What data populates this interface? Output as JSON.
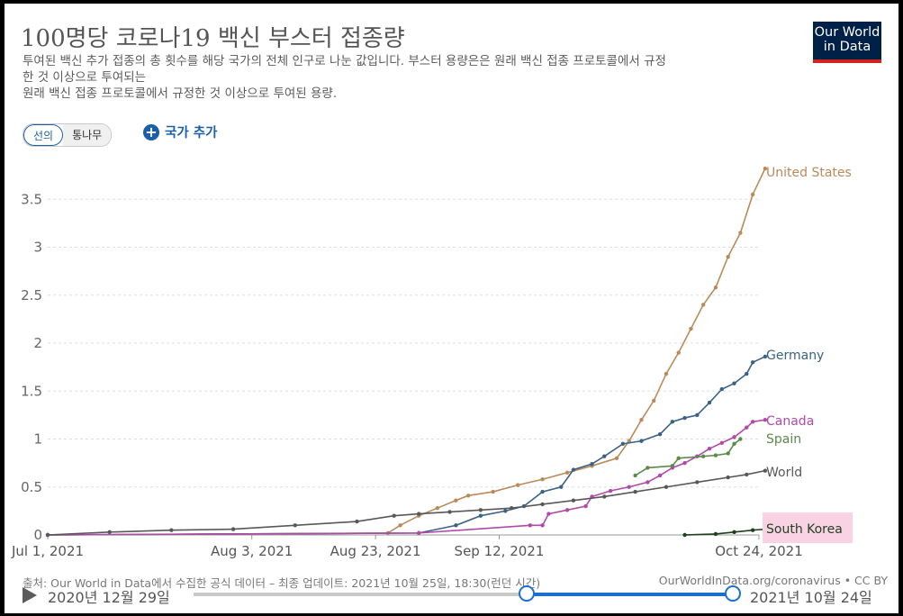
{
  "header": {
    "title": "100명당 코로나19 백신 부스터 접종량",
    "subtitle_line1": "투여된 백신 추가 접종의 총 횟수를 해당 국가의 전체 인구로 나눈 값입니다. 부스터 용량은은 원래 백신 접종 프로토콜에서 규정",
    "subtitle_line2": "한 것 이상으로 투여되는",
    "subtitle_line3": "원래 백신 접종 프로토콜에서 규정한 것 이상으로 투여된 용량.",
    "logo_line1": "Our World",
    "logo_line2": "in Data"
  },
  "controls": {
    "tab_line": "선의",
    "tab_map": "통나무",
    "add_country": "국가 추가"
  },
  "footer": {
    "source": "출처: Our World in Data에서 수집한 공식 데이터 – 최종 업데이트: 2021년 10월 25일, 18:30(런던 시간)",
    "url": "OurWorldInData.org/coronavirus • CC BY"
  },
  "timeline": {
    "start_label": "2020년 12월 29일",
    "end_label": "2021년 10월 24일"
  },
  "colors": {
    "United States": "#b98a5a",
    "Germany": "#3b6286",
    "Canada": "#b04aa8",
    "Spain": "#5c8a4b",
    "World": "#585858",
    "South Korea": "#1f3f1f",
    "highlight": "#f9d2e4"
  },
  "chart_data": {
    "type": "line",
    "title": "100명당 코로나19 백신 부스터 접종량",
    "xlabel": "",
    "ylabel": "",
    "x_ticks": [
      {
        "day": 0,
        "label": "Jul 1, 2021"
      },
      {
        "day": 33,
        "label": "Aug 3, 2021"
      },
      {
        "day": 53,
        "label": "Aug 23, 2021"
      },
      {
        "day": 73,
        "label": "Sep 12, 2021"
      },
      {
        "day": 115,
        "label": "Oct 24, 2021"
      }
    ],
    "y_ticks": [
      0,
      0.5,
      1,
      1.5,
      2,
      2.5,
      3,
      3.5
    ],
    "xlim": [
      0,
      115
    ],
    "ylim": [
      0,
      3.85
    ],
    "series": [
      {
        "name": "United States",
        "points": [
          [
            0,
            0
          ],
          [
            55,
            0.02
          ],
          [
            57,
            0.1
          ],
          [
            60,
            0.2
          ],
          [
            63,
            0.28
          ],
          [
            66,
            0.36
          ],
          [
            68,
            0.41
          ],
          [
            72,
            0.45
          ],
          [
            76,
            0.52
          ],
          [
            80,
            0.58
          ],
          [
            84,
            0.65
          ],
          [
            88,
            0.72
          ],
          [
            92,
            0.8
          ],
          [
            94,
            0.98
          ],
          [
            96,
            1.2
          ],
          [
            98,
            1.4
          ],
          [
            100,
            1.68
          ],
          [
            102,
            1.9
          ],
          [
            104,
            2.15
          ],
          [
            106,
            2.4
          ],
          [
            108,
            2.58
          ],
          [
            110,
            2.9
          ],
          [
            112,
            3.15
          ],
          [
            114,
            3.55
          ],
          [
            116,
            3.82
          ]
        ]
      },
      {
        "name": "Germany",
        "points": [
          [
            0,
            0
          ],
          [
            60,
            0.02
          ],
          [
            66,
            0.1
          ],
          [
            70,
            0.2
          ],
          [
            74,
            0.25
          ],
          [
            77,
            0.3
          ],
          [
            80,
            0.45
          ],
          [
            83,
            0.5
          ],
          [
            85,
            0.68
          ],
          [
            88,
            0.74
          ],
          [
            90,
            0.82
          ],
          [
            93,
            0.95
          ],
          [
            96,
            0.98
          ],
          [
            99,
            1.05
          ],
          [
            101,
            1.18
          ],
          [
            103,
            1.22
          ],
          [
            105,
            1.25
          ],
          [
            107,
            1.38
          ],
          [
            109,
            1.52
          ],
          [
            111,
            1.58
          ],
          [
            113,
            1.68
          ],
          [
            114,
            1.8
          ],
          [
            116,
            1.86
          ]
        ]
      },
      {
        "name": "Canada",
        "points": [
          [
            0,
            0
          ],
          [
            60,
            0.02
          ],
          [
            78,
            0.1
          ],
          [
            80,
            0.1
          ],
          [
            81,
            0.22
          ],
          [
            84,
            0.26
          ],
          [
            87,
            0.3
          ],
          [
            88,
            0.4
          ],
          [
            91,
            0.46
          ],
          [
            94,
            0.5
          ],
          [
            97,
            0.55
          ],
          [
            99,
            0.62
          ],
          [
            101,
            0.7
          ],
          [
            103,
            0.75
          ],
          [
            105,
            0.82
          ],
          [
            107,
            0.9
          ],
          [
            109,
            0.96
          ],
          [
            111,
            1.02
          ],
          [
            113,
            1.12
          ],
          [
            114,
            1.18
          ],
          [
            116,
            1.2
          ]
        ]
      },
      {
        "name": "Spain",
        "points": [
          [
            95,
            0.62
          ],
          [
            97,
            0.7
          ],
          [
            101,
            0.72
          ],
          [
            102,
            0.8
          ],
          [
            106,
            0.82
          ],
          [
            108,
            0.83
          ],
          [
            110,
            0.85
          ],
          [
            111,
            0.95
          ],
          [
            112,
            1.0
          ]
        ]
      },
      {
        "name": "World",
        "points": [
          [
            0,
            0
          ],
          [
            10,
            0.03
          ],
          [
            20,
            0.05
          ],
          [
            30,
            0.06
          ],
          [
            40,
            0.1
          ],
          [
            50,
            0.14
          ],
          [
            56,
            0.2
          ],
          [
            60,
            0.22
          ],
          [
            65,
            0.24
          ],
          [
            70,
            0.26
          ],
          [
            75,
            0.28
          ],
          [
            80,
            0.32
          ],
          [
            85,
            0.36
          ],
          [
            90,
            0.4
          ],
          [
            95,
            0.45
          ],
          [
            100,
            0.5
          ],
          [
            105,
            0.55
          ],
          [
            110,
            0.6
          ],
          [
            113,
            0.63
          ],
          [
            116,
            0.67
          ]
        ]
      },
      {
        "name": "South Korea",
        "points": [
          [
            103,
            0
          ],
          [
            108,
            0.01
          ],
          [
            111,
            0.03
          ],
          [
            114,
            0.05
          ],
          [
            116,
            0.06
          ]
        ]
      }
    ]
  }
}
